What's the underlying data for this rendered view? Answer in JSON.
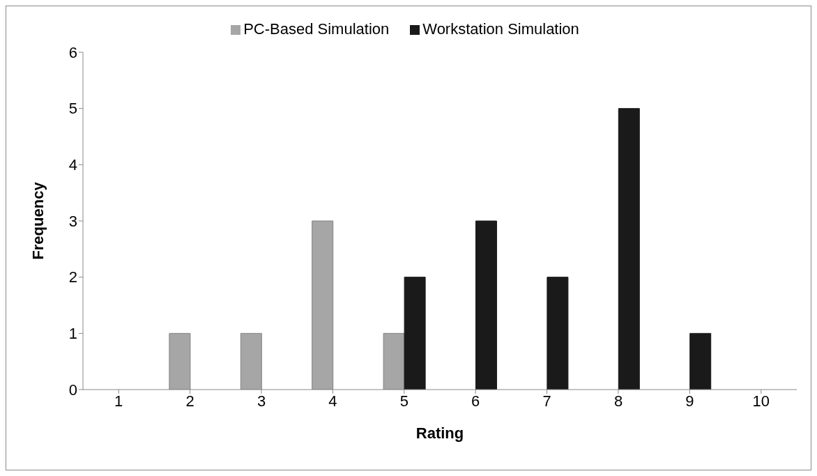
{
  "chart_data": {
    "type": "bar",
    "xlabel": "Rating",
    "ylabel": "Frequency",
    "categories": [
      "1",
      "2",
      "3",
      "4",
      "5",
      "6",
      "7",
      "8",
      "9",
      "10"
    ],
    "series": [
      {
        "name": "PC-Based Simulation",
        "color": "#a6a6a6",
        "values": [
          0,
          1,
          1,
          3,
          1,
          0,
          0,
          0,
          0,
          0
        ]
      },
      {
        "name": "Workstation Simulation",
        "color": "#1a1a1a",
        "values": [
          0,
          0,
          0,
          0,
          2,
          3,
          2,
          5,
          1,
          0
        ]
      }
    ],
    "ylim": [
      0,
      6
    ],
    "yticks": [
      0,
      1,
      2,
      3,
      4,
      5,
      6
    ],
    "grid": false,
    "legend": "top"
  }
}
